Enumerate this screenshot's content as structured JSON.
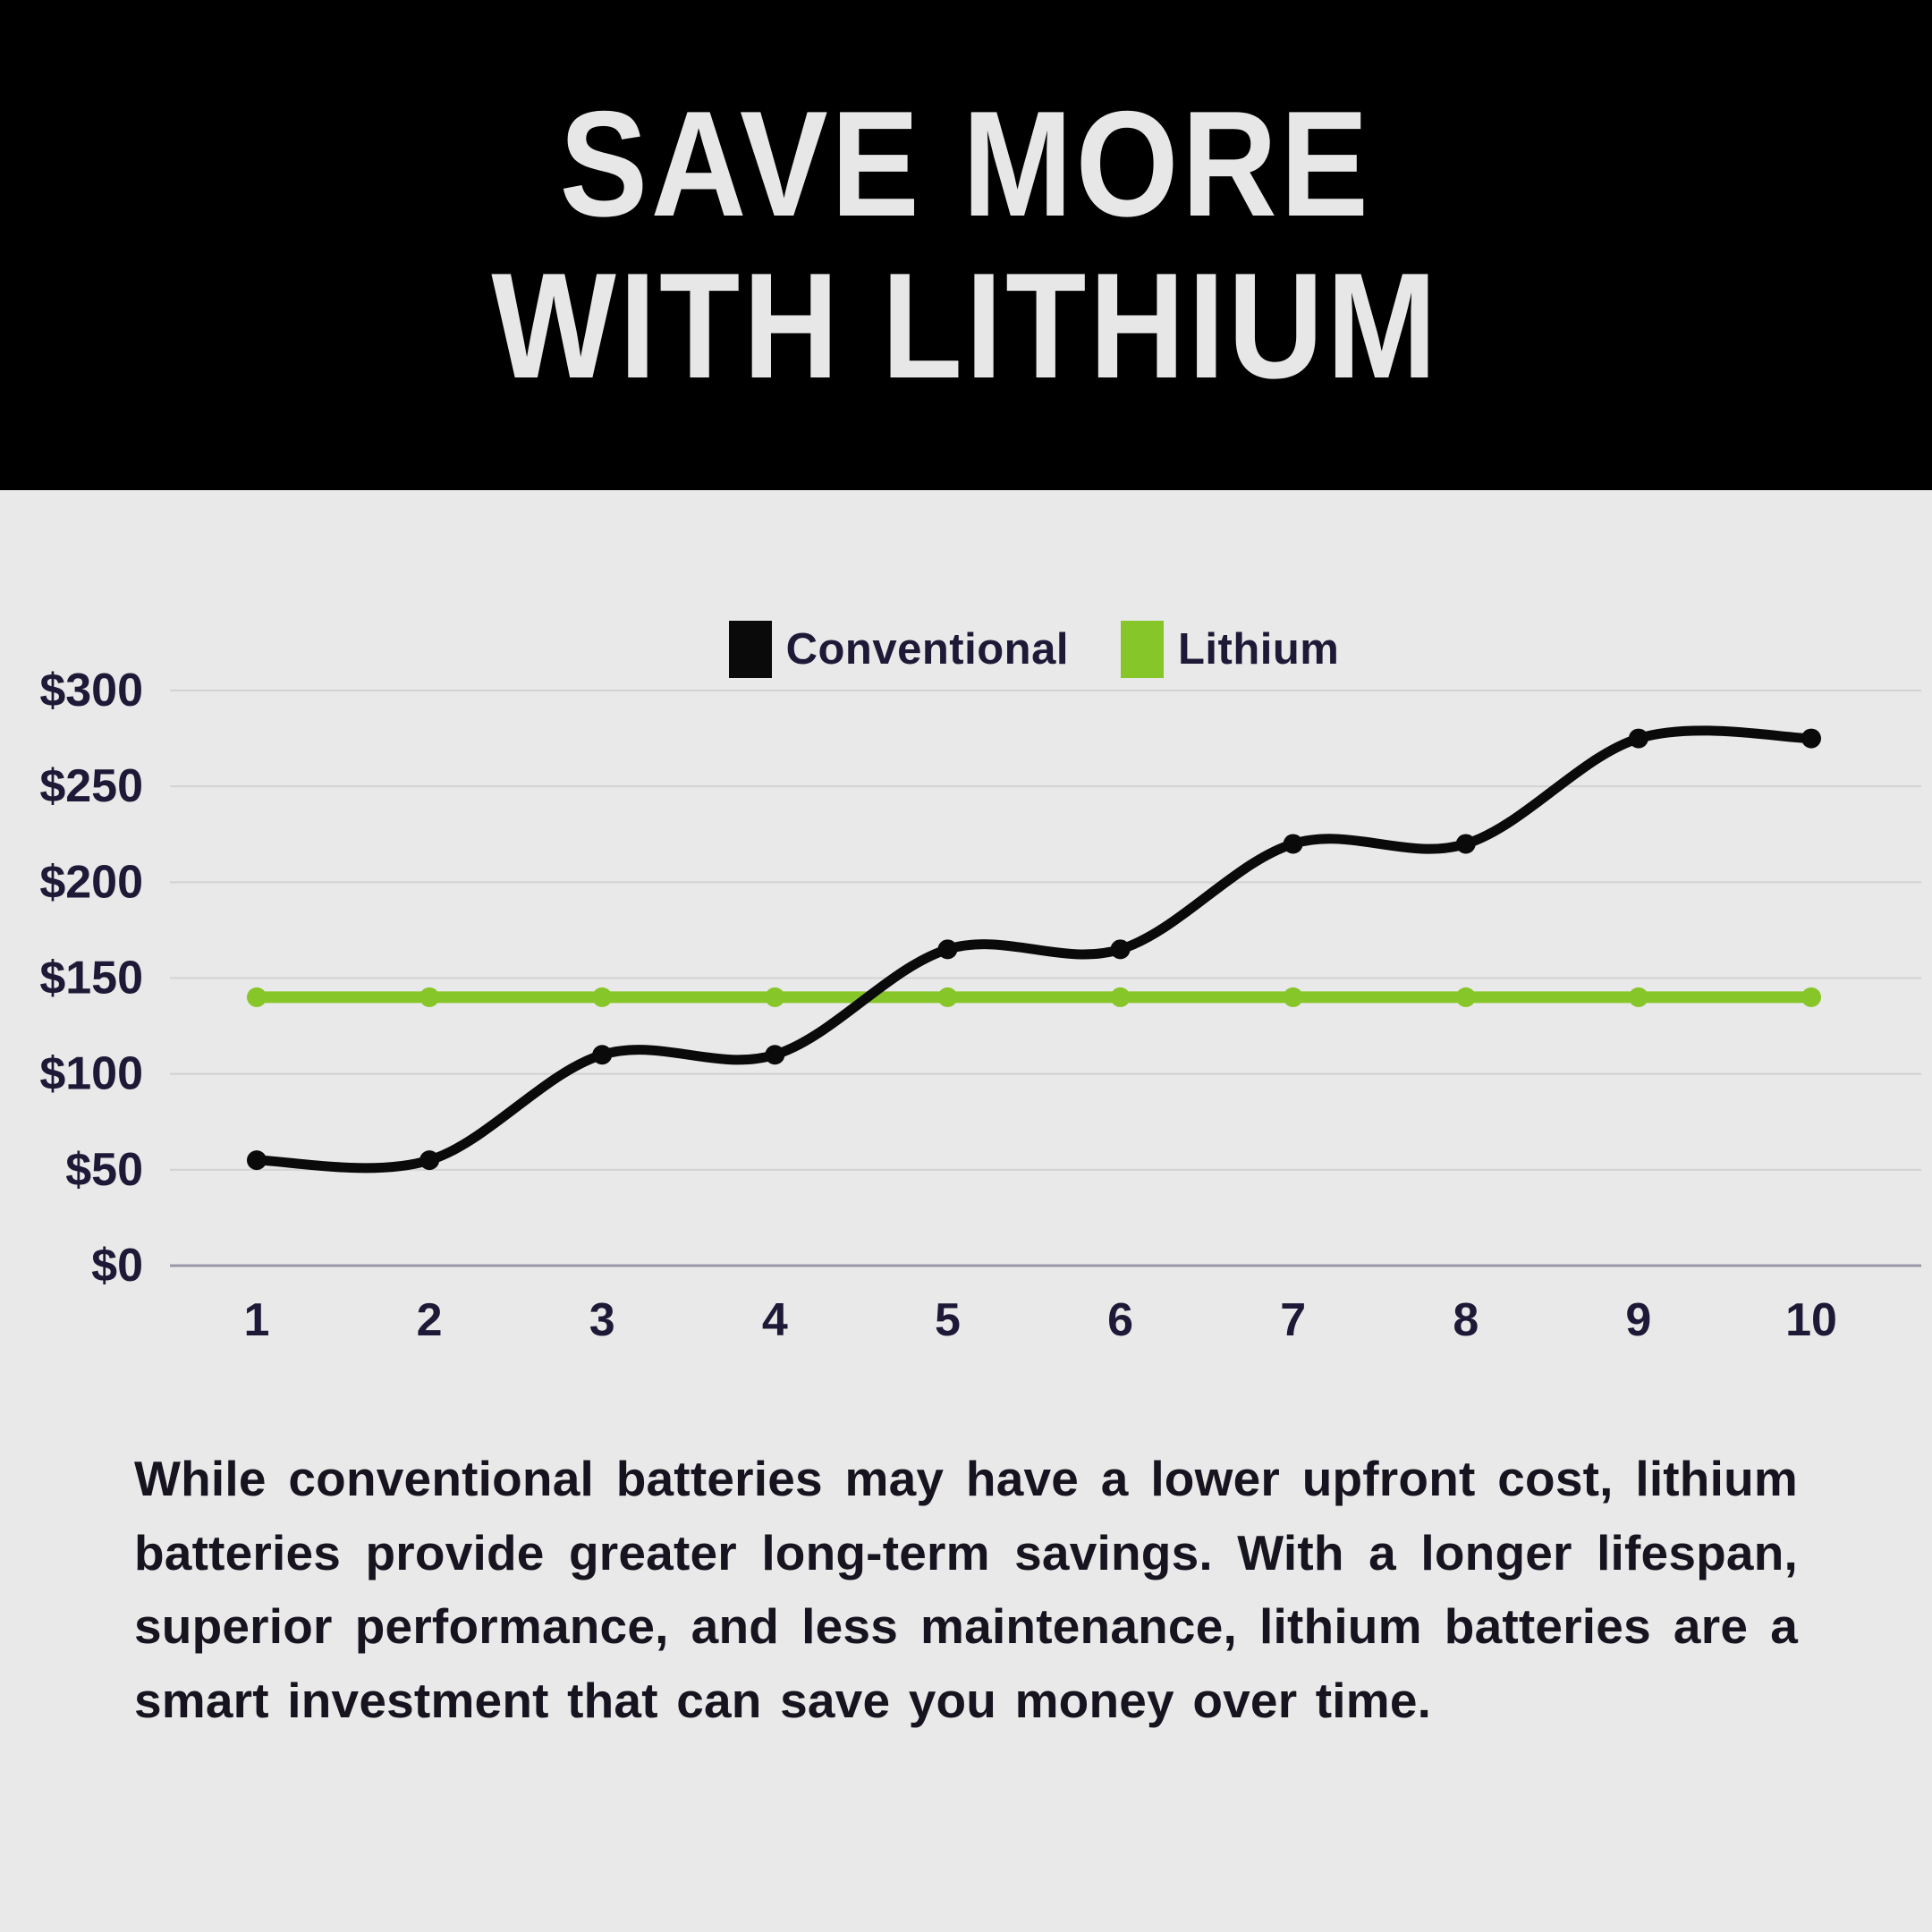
{
  "header": {
    "title_line1": "SAVE MORE",
    "title_line2": "WITH LITHIUM"
  },
  "legend": {
    "items": [
      {
        "label": "Conventional",
        "color": "#0a0a0a"
      },
      {
        "label": "Lithium",
        "color": "#87c629"
      }
    ]
  },
  "chart_data": {
    "type": "line",
    "x": [
      1,
      2,
      3,
      4,
      5,
      6,
      7,
      8,
      9,
      10
    ],
    "series": [
      {
        "name": "Conventional",
        "color": "#0a0a0a",
        "line_width": 11,
        "smooth": true,
        "values": [
          55,
          55,
          110,
          110,
          165,
          165,
          220,
          220,
          275,
          275
        ]
      },
      {
        "name": "Lithium",
        "color": "#87c629",
        "line_width": 13,
        "smooth": false,
        "values": [
          140,
          140,
          140,
          140,
          140,
          140,
          140,
          140,
          140,
          140
        ]
      }
    ],
    "yticks": [
      0,
      50,
      100,
      150,
      200,
      250,
      300
    ],
    "ytick_prefix": "$",
    "ylim": [
      0,
      300
    ],
    "grid": true,
    "legend_position": "top-center",
    "title": "",
    "xlabel": "",
    "ylabel": ""
  },
  "body": {
    "text": "While conventional batteries may have a lower upfront cost, lithium batteries provide greater long-term savings. With a longer lifespan, superior performance, and less maintenance, lithium batteries are a smart investment that can save you money over time."
  },
  "colors": {
    "background": "#e9e9e9",
    "header_bg": "#000000",
    "title_text": "#e7e7e7",
    "axis_text": "#1e1936",
    "gridline": "#d2d2d4",
    "axis_line": "#9a97a8"
  }
}
